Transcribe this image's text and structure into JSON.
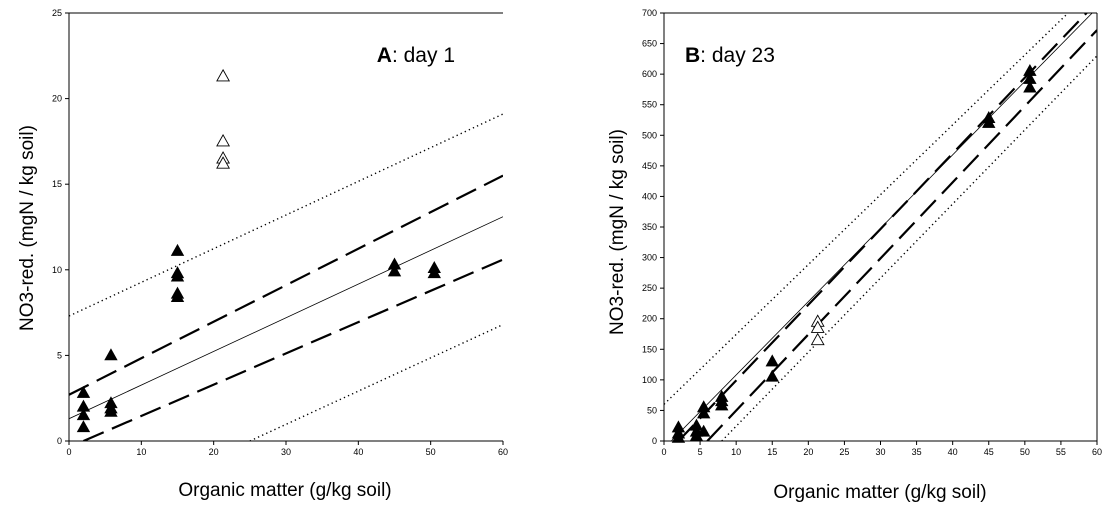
{
  "chart_data": [
    {
      "type": "scatter",
      "panel_letter": "A",
      "title": ": day 1",
      "xlabel": "Organic matter (g/kg soil)",
      "ylabel": "NO3-red. (mgN / kg soil)",
      "xlim": [
        0,
        60
      ],
      "ylim": [
        0,
        25
      ],
      "x_ticks": [
        "0",
        "10",
        "20",
        "30",
        "40",
        "50",
        "60"
      ],
      "y_ticks": [
        "0",
        "5",
        "10",
        "15",
        "20",
        "25"
      ],
      "grid": false,
      "legend": "none",
      "series": [
        {
          "marker": "filled-triangle",
          "points": [
            [
              2,
              2.8
            ],
            [
              2,
              2.0
            ],
            [
              2,
              1.5
            ],
            [
              2,
              0.8
            ],
            [
              5.8,
              5.0
            ],
            [
              5.8,
              2.2
            ],
            [
              5.8,
              1.9
            ],
            [
              5.8,
              1.7
            ],
            [
              15,
              11.1
            ],
            [
              15,
              9.8
            ],
            [
              15,
              9.6
            ],
            [
              15,
              8.6
            ],
            [
              15,
              8.4
            ],
            [
              45,
              10.3
            ],
            [
              45,
              9.9
            ],
            [
              50.5,
              10.1
            ],
            [
              50.5,
              9.8
            ]
          ]
        },
        {
          "marker": "open-triangle",
          "points": [
            [
              21.3,
              21.3
            ],
            [
              21.3,
              17.5
            ],
            [
              21.3,
              16.5
            ],
            [
              21.3,
              16.2
            ]
          ]
        }
      ],
      "lines": [
        {
          "style": "solid-thin",
          "points": [
            [
              0,
              1.3
            ],
            [
              60,
              13.1
            ]
          ]
        },
        {
          "style": "long-dash",
          "points": [
            [
              0,
              2.7
            ],
            [
              60,
              15.5
            ]
          ]
        },
        {
          "style": "long-dash",
          "points": [
            [
              2,
              0
            ],
            [
              60,
              10.6
            ]
          ]
        },
        {
          "style": "dotted",
          "points": [
            [
              0,
              7.3
            ],
            [
              60,
              19.1
            ]
          ]
        },
        {
          "style": "dotted",
          "points": [
            [
              25,
              0
            ],
            [
              60,
              6.8
            ]
          ]
        }
      ]
    },
    {
      "type": "scatter",
      "panel_letter": "B",
      "title": ": day 23",
      "xlabel": "Organic matter (g/kg soil)",
      "ylabel": "NO3-red. (mgN / kg soil)",
      "xlim": [
        0,
        60
      ],
      "ylim": [
        0,
        700
      ],
      "x_ticks": [
        "0",
        "5",
        "10",
        "15",
        "20",
        "25",
        "30",
        "35",
        "40",
        "45",
        "50",
        "55",
        "60"
      ],
      "y_ticks": [
        "0",
        "50",
        "100",
        "150",
        "200",
        "250",
        "300",
        "350",
        "400",
        "450",
        "500",
        "550",
        "600",
        "650",
        "700"
      ],
      "grid": false,
      "legend": "none",
      "series": [
        {
          "marker": "filled-triangle",
          "points": [
            [
              2,
              22
            ],
            [
              2,
              12
            ],
            [
              2,
              5
            ],
            [
              4.5,
              25
            ],
            [
              4.5,
              15
            ],
            [
              4.5,
              8
            ],
            [
              5.5,
              55
            ],
            [
              5.5,
              45
            ],
            [
              5.5,
              15
            ],
            [
              8,
              72
            ],
            [
              8,
              65
            ],
            [
              8,
              58
            ],
            [
              15,
              130
            ],
            [
              15,
              105
            ],
            [
              45,
              528
            ],
            [
              45,
              520
            ],
            [
              50.7,
              605
            ],
            [
              50.7,
              592
            ],
            [
              50.7,
              578
            ]
          ]
        },
        {
          "marker": "open-triangle",
          "points": [
            [
              21.3,
              195
            ],
            [
              21.3,
              185
            ],
            [
              21.3,
              165
            ]
          ]
        }
      ],
      "lines": [
        {
          "style": "solid-thin",
          "points": [
            [
              0,
              -12
            ],
            [
              60,
              708
            ]
          ]
        },
        {
          "style": "long-dash",
          "points": [
            [
              2,
              0
            ],
            [
              60,
              718
            ]
          ]
        },
        {
          "style": "long-dash",
          "points": [
            [
              6,
              0
            ],
            [
              60,
              672
            ]
          ]
        },
        {
          "style": "dotted",
          "points": [
            [
              0,
              60
            ],
            [
              56,
              700
            ]
          ]
        },
        {
          "style": "dotted",
          "points": [
            [
              8,
              0
            ],
            [
              60,
              630
            ]
          ]
        }
      ]
    }
  ]
}
